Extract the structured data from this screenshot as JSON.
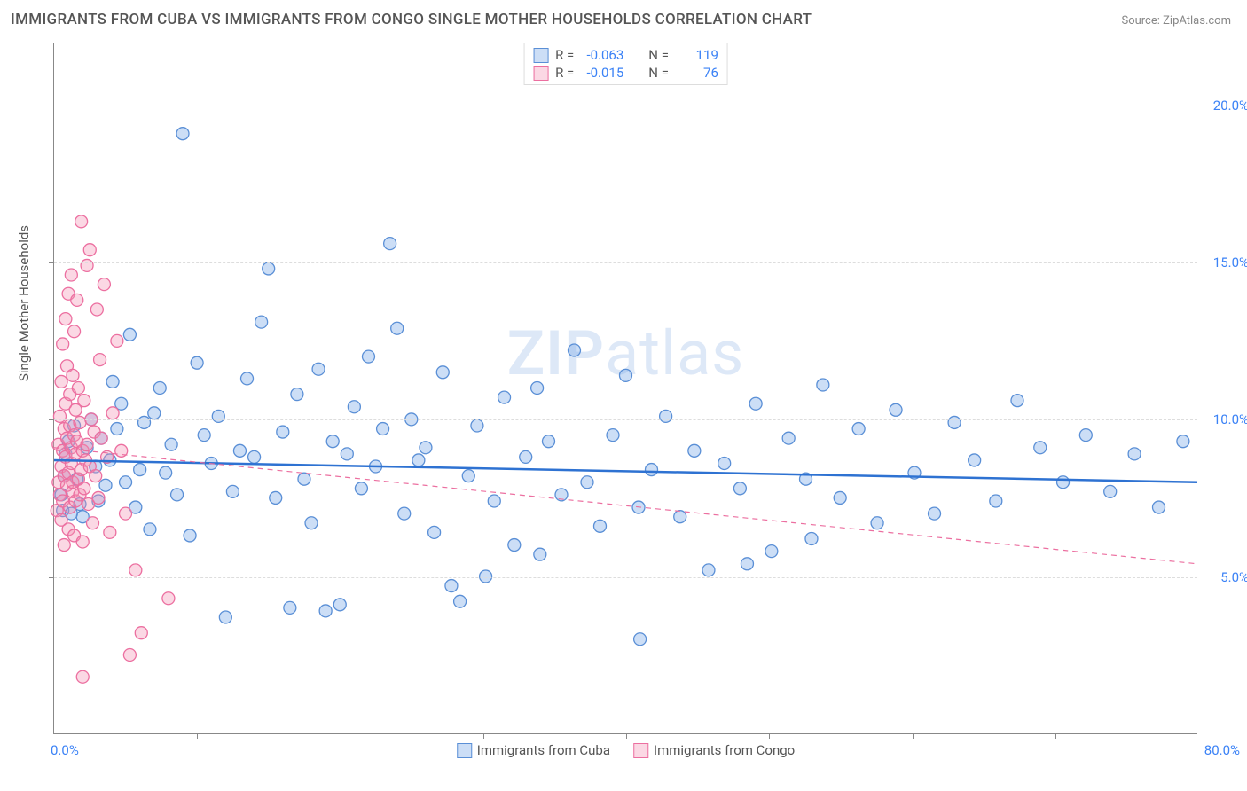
{
  "title": "IMMIGRANTS FROM CUBA VS IMMIGRANTS FROM CONGO SINGLE MOTHER HOUSEHOLDS CORRELATION CHART",
  "source": "Source: ZipAtlas.com",
  "ylabel": "Single Mother Households",
  "watermark_a": "ZIP",
  "watermark_b": "atlas",
  "chart": {
    "type": "scatter",
    "xlim": [
      0,
      80
    ],
    "ylim": [
      0,
      22
    ],
    "yticks": [
      {
        "val": 5,
        "label": "5.0%"
      },
      {
        "val": 10,
        "label": "10.0%"
      },
      {
        "val": 15,
        "label": "15.0%"
      },
      {
        "val": 20,
        "label": "20.0%"
      }
    ],
    "xtick_positions": [
      10,
      20,
      30,
      40,
      50,
      60,
      70
    ],
    "xtick_origin": "0.0%",
    "xtick_end": "80.0%",
    "background_color": "#ffffff",
    "grid_color": "#dddddd",
    "marker_radius": 7,
    "marker_stroke_width": 1.3,
    "series": [
      {
        "name": "Immigrants from Cuba",
        "fill": "rgba(110,160,230,0.35)",
        "stroke": "#5a8fd6",
        "r_label": "R =",
        "r_value": "-0.063",
        "n_label": "N =",
        "n_value": "119",
        "trend": {
          "y_at_x0": 8.7,
          "y_at_x80": 8.0,
          "color": "#2e72d2",
          "width": 2.5,
          "dash": "none"
        },
        "points": [
          [
            0.5,
            7.6
          ],
          [
            0.6,
            7.1
          ],
          [
            0.7,
            8.2
          ],
          [
            0.8,
            8.9
          ],
          [
            1.0,
            9.3
          ],
          [
            1.2,
            7.0
          ],
          [
            1.4,
            9.8
          ],
          [
            1.6,
            8.1
          ],
          [
            1.8,
            7.3
          ],
          [
            2.0,
            6.9
          ],
          [
            2.3,
            9.1
          ],
          [
            2.6,
            10.0
          ],
          [
            2.9,
            8.5
          ],
          [
            3.1,
            7.4
          ],
          [
            3.3,
            9.4
          ],
          [
            3.6,
            7.9
          ],
          [
            3.9,
            8.7
          ],
          [
            4.1,
            11.2
          ],
          [
            4.4,
            9.7
          ],
          [
            4.7,
            10.5
          ],
          [
            5.0,
            8.0
          ],
          [
            5.3,
            12.7
          ],
          [
            5.7,
            7.2
          ],
          [
            6.0,
            8.4
          ],
          [
            6.3,
            9.9
          ],
          [
            6.7,
            6.5
          ],
          [
            7.0,
            10.2
          ],
          [
            7.4,
            11.0
          ],
          [
            7.8,
            8.3
          ],
          [
            8.2,
            9.2
          ],
          [
            8.6,
            7.6
          ],
          [
            9.0,
            19.1
          ],
          [
            9.5,
            6.3
          ],
          [
            10.0,
            11.8
          ],
          [
            10.5,
            9.5
          ],
          [
            11.0,
            8.6
          ],
          [
            11.5,
            10.1
          ],
          [
            12.0,
            3.7
          ],
          [
            12.5,
            7.7
          ],
          [
            13.0,
            9.0
          ],
          [
            13.5,
            11.3
          ],
          [
            14.0,
            8.8
          ],
          [
            14.5,
            13.1
          ],
          [
            15.0,
            14.8
          ],
          [
            15.5,
            7.5
          ],
          [
            16.0,
            9.6
          ],
          [
            16.5,
            4.0
          ],
          [
            17.0,
            10.8
          ],
          [
            17.5,
            8.1
          ],
          [
            18.0,
            6.7
          ],
          [
            18.5,
            11.6
          ],
          [
            19.0,
            3.9
          ],
          [
            19.5,
            9.3
          ],
          [
            20.0,
            4.1
          ],
          [
            20.5,
            8.9
          ],
          [
            21.0,
            10.4
          ],
          [
            21.5,
            7.8
          ],
          [
            22.0,
            12.0
          ],
          [
            22.5,
            8.5
          ],
          [
            23.0,
            9.7
          ],
          [
            23.5,
            15.6
          ],
          [
            24.0,
            12.9
          ],
          [
            24.5,
            7.0
          ],
          [
            25.0,
            10.0
          ],
          [
            25.5,
            8.7
          ],
          [
            26.0,
            9.1
          ],
          [
            26.6,
            6.4
          ],
          [
            27.2,
            11.5
          ],
          [
            27.8,
            4.7
          ],
          [
            28.4,
            4.2
          ],
          [
            29.0,
            8.2
          ],
          [
            29.6,
            9.8
          ],
          [
            30.2,
            5.0
          ],
          [
            30.8,
            7.4
          ],
          [
            31.5,
            10.7
          ],
          [
            32.2,
            6.0
          ],
          [
            33.0,
            8.8
          ],
          [
            33.8,
            11.0
          ],
          [
            34.6,
            9.3
          ],
          [
            35.5,
            7.6
          ],
          [
            36.4,
            12.2
          ],
          [
            37.3,
            8.0
          ],
          [
            38.2,
            6.6
          ],
          [
            39.1,
            9.5
          ],
          [
            40.0,
            11.4
          ],
          [
            40.9,
            7.2
          ],
          [
            41.8,
            8.4
          ],
          [
            42.8,
            10.1
          ],
          [
            43.8,
            6.9
          ],
          [
            44.8,
            9.0
          ],
          [
            45.8,
            5.2
          ],
          [
            46.9,
            8.6
          ],
          [
            48.0,
            7.8
          ],
          [
            49.1,
            10.5
          ],
          [
            50.2,
            5.8
          ],
          [
            51.4,
            9.4
          ],
          [
            52.6,
            8.1
          ],
          [
            53.8,
            11.1
          ],
          [
            55.0,
            7.5
          ],
          [
            56.3,
            9.7
          ],
          [
            57.6,
            6.7
          ],
          [
            58.9,
            10.3
          ],
          [
            60.2,
            8.3
          ],
          [
            61.6,
            7.0
          ],
          [
            63.0,
            9.9
          ],
          [
            64.4,
            8.7
          ],
          [
            65.9,
            7.4
          ],
          [
            67.4,
            10.6
          ],
          [
            69.0,
            9.1
          ],
          [
            70.6,
            8.0
          ],
          [
            72.2,
            9.5
          ],
          [
            73.9,
            7.7
          ],
          [
            75.6,
            8.9
          ],
          [
            77.3,
            7.2
          ],
          [
            79.0,
            9.3
          ],
          [
            41.0,
            3.0
          ],
          [
            34.0,
            5.7
          ],
          [
            48.5,
            5.4
          ],
          [
            53.0,
            6.2
          ]
        ]
      },
      {
        "name": "Immigrants from Congo",
        "fill": "rgba(244,143,177,0.35)",
        "stroke": "#ec6fa0",
        "r_label": "R =",
        "r_value": "-0.015",
        "n_label": "N =",
        "n_value": "76",
        "trend": {
          "y_at_x0": 9.1,
          "y_at_x80": 5.4,
          "color": "#ec6fa0",
          "width": 1.2,
          "dash": "6,5"
        },
        "points": [
          [
            0.2,
            7.1
          ],
          [
            0.3,
            8.0
          ],
          [
            0.3,
            9.2
          ],
          [
            0.4,
            7.6
          ],
          [
            0.4,
            10.1
          ],
          [
            0.5,
            8.5
          ],
          [
            0.5,
            6.8
          ],
          [
            0.5,
            11.2
          ],
          [
            0.6,
            9.0
          ],
          [
            0.6,
            7.4
          ],
          [
            0.6,
            12.4
          ],
          [
            0.7,
            8.2
          ],
          [
            0.7,
            9.7
          ],
          [
            0.7,
            6.0
          ],
          [
            0.8,
            10.5
          ],
          [
            0.8,
            8.8
          ],
          [
            0.8,
            13.2
          ],
          [
            0.9,
            7.9
          ],
          [
            0.9,
            9.4
          ],
          [
            0.9,
            11.7
          ],
          [
            1.0,
            8.3
          ],
          [
            1.0,
            6.5
          ],
          [
            1.0,
            14.0
          ],
          [
            1.1,
            9.8
          ],
          [
            1.1,
            7.2
          ],
          [
            1.1,
            10.8
          ],
          [
            1.2,
            8.6
          ],
          [
            1.2,
            14.6
          ],
          [
            1.2,
            9.1
          ],
          [
            1.3,
            7.7
          ],
          [
            1.3,
            11.4
          ],
          [
            1.3,
            8.0
          ],
          [
            1.4,
            9.5
          ],
          [
            1.4,
            6.3
          ],
          [
            1.4,
            12.8
          ],
          [
            1.5,
            8.9
          ],
          [
            1.5,
            10.3
          ],
          [
            1.5,
            7.4
          ],
          [
            1.6,
            13.8
          ],
          [
            1.6,
            9.3
          ],
          [
            1.7,
            8.1
          ],
          [
            1.7,
            11.0
          ],
          [
            1.8,
            7.6
          ],
          [
            1.8,
            9.9
          ],
          [
            1.9,
            16.3
          ],
          [
            1.9,
            8.4
          ],
          [
            2.0,
            6.1
          ],
          [
            2.0,
            9.0
          ],
          [
            2.1,
            7.8
          ],
          [
            2.1,
            10.6
          ],
          [
            2.2,
            8.7
          ],
          [
            2.3,
            14.9
          ],
          [
            2.3,
            9.2
          ],
          [
            2.4,
            7.3
          ],
          [
            2.5,
            15.4
          ],
          [
            2.5,
            8.5
          ],
          [
            2.6,
            10.0
          ],
          [
            2.7,
            6.7
          ],
          [
            2.8,
            9.6
          ],
          [
            2.9,
            8.2
          ],
          [
            3.0,
            13.5
          ],
          [
            3.1,
            7.5
          ],
          [
            3.2,
            11.9
          ],
          [
            3.3,
            9.4
          ],
          [
            3.5,
            14.3
          ],
          [
            3.7,
            8.8
          ],
          [
            3.9,
            6.4
          ],
          [
            4.1,
            10.2
          ],
          [
            4.4,
            12.5
          ],
          [
            4.7,
            9.0
          ],
          [
            5.0,
            7.0
          ],
          [
            5.3,
            2.5
          ],
          [
            5.7,
            5.2
          ],
          [
            6.1,
            3.2
          ],
          [
            8.0,
            4.3
          ],
          [
            2.0,
            1.8
          ]
        ]
      }
    ]
  }
}
